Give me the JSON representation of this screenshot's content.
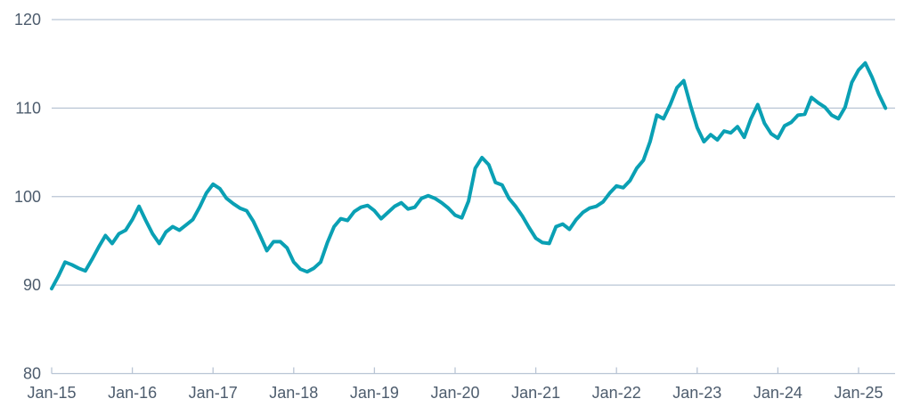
{
  "chart_data": {
    "type": "line",
    "title": "",
    "xlabel": "",
    "ylabel": "",
    "ylim": [
      80,
      120
    ],
    "grid": "horizontal",
    "legend": "none",
    "x_tick_labels": [
      "Jan-15",
      "Jan-16",
      "Jan-17",
      "Jan-18",
      "Jan-19",
      "Jan-20",
      "Jan-21",
      "Jan-22",
      "Jan-23",
      "Jan-24",
      "Jan-25"
    ],
    "y_tick_labels": [
      "80",
      "90",
      "100",
      "110",
      "120"
    ],
    "y_ticks": [
      80,
      90,
      100,
      110,
      120
    ],
    "months": [
      "Jan-15",
      "Feb-15",
      "Mar-15",
      "Apr-15",
      "May-15",
      "Jun-15",
      "Jul-15",
      "Aug-15",
      "Sep-15",
      "Oct-15",
      "Nov-15",
      "Dec-15",
      "Jan-16",
      "Feb-16",
      "Mar-16",
      "Apr-16",
      "May-16",
      "Jun-16",
      "Jul-16",
      "Aug-16",
      "Sep-16",
      "Oct-16",
      "Nov-16",
      "Dec-16",
      "Jan-17",
      "Feb-17",
      "Mar-17",
      "Apr-17",
      "May-17",
      "Jun-17",
      "Jul-17",
      "Aug-17",
      "Sep-17",
      "Oct-17",
      "Nov-17",
      "Dec-17",
      "Jan-18",
      "Feb-18",
      "Mar-18",
      "Apr-18",
      "May-18",
      "Jun-18",
      "Jul-18",
      "Aug-18",
      "Sep-18",
      "Oct-18",
      "Nov-18",
      "Dec-18",
      "Jan-19",
      "Feb-19",
      "Mar-19",
      "Apr-19",
      "May-19",
      "Jun-19",
      "Jul-19",
      "Aug-19",
      "Sep-19",
      "Oct-19",
      "Nov-19",
      "Dec-19",
      "Jan-20",
      "Feb-20",
      "Mar-20",
      "Apr-20",
      "May-20",
      "Jun-20",
      "Jul-20",
      "Aug-20",
      "Sep-20",
      "Oct-20",
      "Nov-20",
      "Dec-20",
      "Jan-21",
      "Feb-21",
      "Mar-21",
      "Apr-21",
      "May-21",
      "Jun-21",
      "Jul-21",
      "Aug-21",
      "Sep-21",
      "Oct-21",
      "Nov-21",
      "Dec-21",
      "Jan-22",
      "Feb-22",
      "Mar-22",
      "Apr-22",
      "May-22",
      "Jun-22",
      "Jul-22",
      "Aug-22",
      "Sep-22",
      "Oct-22",
      "Nov-22",
      "Dec-22",
      "Jan-23",
      "Feb-23",
      "Mar-23",
      "Apr-23",
      "May-23",
      "Jun-23",
      "Jul-23",
      "Aug-23",
      "Sep-23",
      "Oct-23",
      "Nov-23",
      "Dec-23",
      "Jan-24",
      "Feb-24",
      "Mar-24",
      "Apr-24",
      "May-24",
      "Jun-24",
      "Jul-24",
      "Aug-24",
      "Sep-24",
      "Oct-24",
      "Nov-24",
      "Dec-24",
      "Jan-25",
      "Feb-25",
      "Mar-25",
      "Apr-25",
      "May-25"
    ],
    "series": [
      {
        "values": [
          89.6,
          91.0,
          92.6,
          92.3,
          91.9,
          91.6,
          92.9,
          94.3,
          95.6,
          94.7,
          95.8,
          96.2,
          97.4,
          98.9,
          97.3,
          95.8,
          94.7,
          96.0,
          96.6,
          96.2,
          96.8,
          97.4,
          98.8,
          100.4,
          101.4,
          100.9,
          99.8,
          99.2,
          98.7,
          98.4,
          97.2,
          95.6,
          93.9,
          94.9,
          94.9,
          94.2,
          92.6,
          91.8,
          91.5,
          91.9,
          92.6,
          94.8,
          96.6,
          97.5,
          97.3,
          98.3,
          98.8,
          99.0,
          98.4,
          97.5,
          98.2,
          98.9,
          99.3,
          98.6,
          98.8,
          99.8,
          100.1,
          99.8,
          99.3,
          98.7,
          97.9,
          97.6,
          99.5,
          103.2,
          104.4,
          103.6,
          101.6,
          101.3,
          99.8,
          98.9,
          97.8,
          96.5,
          95.3,
          94.8,
          94.7,
          96.6,
          96.9,
          96.3,
          97.4,
          98.2,
          98.7,
          98.9,
          99.4,
          100.4,
          101.2,
          101.0,
          101.8,
          103.2,
          104.1,
          106.2,
          109.2,
          108.8,
          110.4,
          112.3,
          113.1,
          110.3,
          107.8,
          106.2,
          107.0,
          106.4,
          107.4,
          107.2,
          107.9,
          106.7,
          108.8,
          110.4,
          108.3,
          107.1,
          106.6,
          108.0,
          108.4,
          109.2,
          109.3,
          111.2,
          110.6,
          110.1,
          109.2,
          108.8,
          110.1,
          112.9,
          114.3,
          115.1,
          113.5,
          111.6,
          110.0
        ]
      }
    ],
    "colors": {
      "line": "#0aa0b4",
      "grid": "#b9c5d5",
      "axis": "#b9c5d5",
      "tick_text": "#4d5c6d",
      "background": "#ffffff"
    }
  }
}
